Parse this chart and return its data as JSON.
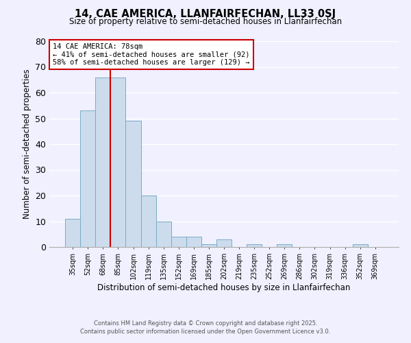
{
  "title": "14, CAE AMERICA, LLANFAIRFECHAN, LL33 0SJ",
  "subtitle": "Size of property relative to semi-detached houses in Llanfairfechan",
  "xlabel": "Distribution of semi-detached houses by size in Llanfairfechan",
  "ylabel": "Number of semi-detached properties",
  "bar_color": "#ccdcec",
  "bar_edge_color": "#7aaac8",
  "background_color": "#f0f0ff",
  "grid_color": "#ffffff",
  "categories": [
    "35sqm",
    "52sqm",
    "68sqm",
    "85sqm",
    "102sqm",
    "119sqm",
    "135sqm",
    "152sqm",
    "169sqm",
    "185sqm",
    "202sqm",
    "219sqm",
    "235sqm",
    "252sqm",
    "269sqm",
    "286sqm",
    "302sqm",
    "319sqm",
    "336sqm",
    "352sqm",
    "369sqm"
  ],
  "values": [
    11,
    53,
    66,
    66,
    49,
    20,
    10,
    4,
    4,
    1,
    3,
    0,
    1,
    0,
    1,
    0,
    0,
    0,
    0,
    1,
    0
  ],
  "ylim": [
    0,
    80
  ],
  "yticks": [
    0,
    10,
    20,
    30,
    40,
    50,
    60,
    70,
    80
  ],
  "vline_position": 2.5,
  "vline_color": "#cc0000",
  "annotation_title": "14 CAE AMERICA: 78sqm",
  "annotation_line1": "← 41% of semi-detached houses are smaller (92)",
  "annotation_line2": "58% of semi-detached houses are larger (129) →",
  "annotation_box_color": "#ffffff",
  "annotation_box_edge": "#cc0000",
  "footer1": "Contains HM Land Registry data © Crown copyright and database right 2025.",
  "footer2": "Contains public sector information licensed under the Open Government Licence v3.0."
}
